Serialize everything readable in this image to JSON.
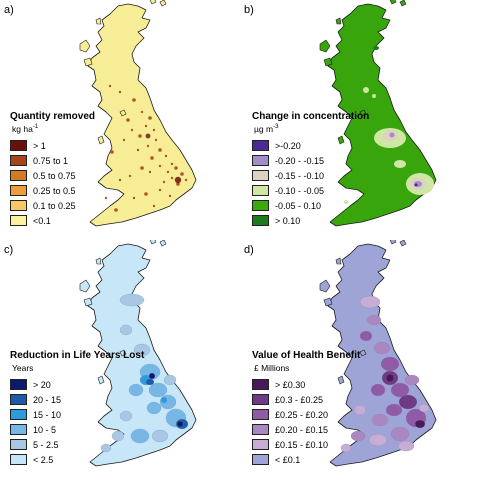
{
  "panels": {
    "a": {
      "letter": "a)",
      "title": "Quantity removed",
      "unit": "kg ha",
      "unit_sup": "-1",
      "base_color": "#f7ed97",
      "dot_color": "#a2521c",
      "legend": [
        {
          "label": "> 1",
          "color": "#6b0f0a"
        },
        {
          "label": "0.75 to 1",
          "color": "#a5461a"
        },
        {
          "label": "0.5 to 0.75",
          "color": "#d27a24"
        },
        {
          "label": "0.25 to 0.5",
          "color": "#ec9e3c"
        },
        {
          "label": "0.1 to 0.25",
          "color": "#f7c767"
        },
        {
          "label": "<0.1",
          "color": "#fbf29e"
        }
      ]
    },
    "b": {
      "letter": "b)",
      "title": "Change in concentration",
      "unit": "µg m",
      "unit_sup": "-3",
      "base_color": "#39a50c",
      "legend": [
        {
          "label": ">-0.20",
          "color": "#4b2a96"
        },
        {
          "label": "-0.20 - -0.15",
          "color": "#a28dc9"
        },
        {
          "label": "-0.15 - -0.10",
          "color": "#ddd0c4"
        },
        {
          "label": "-0.10 - -0.05",
          "color": "#cfe6a4"
        },
        {
          "label": "-0.05 - 0.10",
          "color": "#3aa80f"
        },
        {
          "label": "> 0.10",
          "color": "#1e7a1a"
        }
      ]
    },
    "c": {
      "letter": "c)",
      "title": "Reduction in Life Years Lost",
      "unit": "Years",
      "unit_sup": "",
      "base_color": "#c7e6f8",
      "legend": [
        {
          "label": "> 20",
          "color": "#0c1a6e"
        },
        {
          "label": "20 - 15",
          "color": "#1f5aa8"
        },
        {
          "label": "15 - 10",
          "color": "#2b9bdc"
        },
        {
          "label": "10 - 5",
          "color": "#78b6e6"
        },
        {
          "label": "5 - 2.5",
          "color": "#a9c6e3"
        },
        {
          "label": "< 2.5",
          "color": "#c6e6f8"
        }
      ]
    },
    "d": {
      "letter": "d)",
      "title": "Value of Health Benefit",
      "unit": "£ Millions",
      "unit_sup": "",
      "base_color": "#9ea4d6",
      "legend": [
        {
          "label": "> £0.30",
          "color": "#4a1a58"
        },
        {
          "label": "£0.3 - £0.25",
          "color": "#6e3a84"
        },
        {
          "label": "£0.25 - £0.20",
          "color": "#8f5aa6"
        },
        {
          "label": "£0.20 - £0.15",
          "color": "#a987c0"
        },
        {
          "label": "£0.15 - £0.10",
          "color": "#c7acd4"
        },
        {
          "label": "< £0.1",
          "color": "#9ea4d6"
        }
      ]
    }
  }
}
